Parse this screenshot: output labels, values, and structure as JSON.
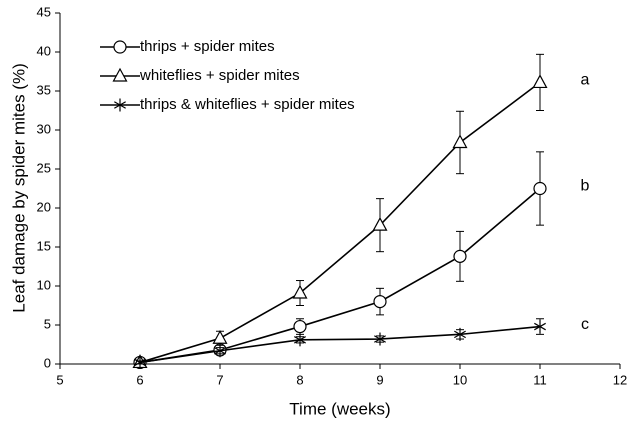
{
  "chart_data": {
    "type": "line",
    "xlabel": "Time (weeks)",
    "ylabel": "Leaf damage by spider mites (%)",
    "x": [
      6,
      7,
      8,
      9,
      10,
      11
    ],
    "series": [
      {
        "name": "thrips + spider mites",
        "color": "#000000",
        "marker": "circle",
        "values": [
          0.2,
          1.8,
          4.8,
          8.0,
          13.8,
          22.5
        ],
        "errors": [
          0.3,
          0.5,
          1.0,
          1.7,
          3.2,
          4.7
        ],
        "annotation": "b"
      },
      {
        "name": "whiteflies + spider mites",
        "color": "#000000",
        "marker": "triangle",
        "values": [
          0.2,
          3.3,
          9.1,
          17.8,
          28.4,
          36.1
        ],
        "errors": [
          0.3,
          0.9,
          1.6,
          3.4,
          4.0,
          3.6
        ],
        "annotation": "a"
      },
      {
        "name": "thrips & whiteflies + spider mites",
        "color": "#000000",
        "marker": "asterisk",
        "values": [
          0.2,
          1.7,
          3.1,
          3.2,
          3.8,
          4.8
        ],
        "errors": [
          0.2,
          0.4,
          0.4,
          0.4,
          0.6,
          1.0
        ],
        "annotation": "c"
      }
    ],
    "xlim": [
      5,
      12
    ],
    "xticks": [
      5,
      6,
      7,
      8,
      9,
      10,
      11,
      12
    ],
    "ylim": [
      0,
      45
    ],
    "yticks": [
      0,
      5,
      10,
      15,
      20,
      25,
      30,
      35,
      40,
      45
    ],
    "grid": false,
    "legend": "upper left"
  }
}
